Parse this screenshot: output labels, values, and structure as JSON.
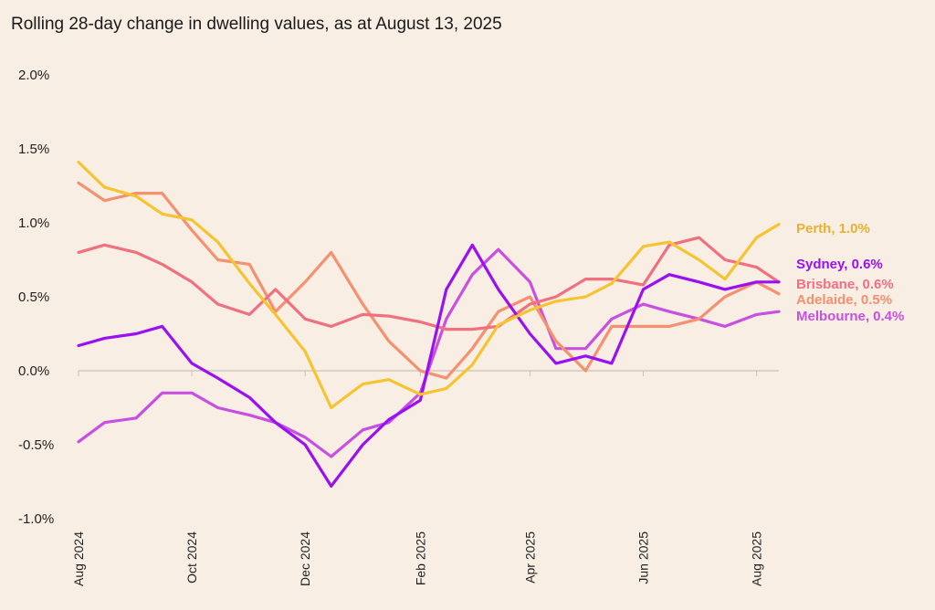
{
  "chart_data": {
    "type": "line",
    "title": "Rolling 28-day change in dwelling values, as at August 13, 2025",
    "xlabel": "",
    "ylabel": "",
    "ylim": [
      -1.0,
      2.0
    ],
    "yticks": [
      "2.0%",
      "1.5%",
      "1.0%",
      "0.5%",
      "0.0%",
      "-0.5%",
      "-1.0%"
    ],
    "ytick_values": [
      2.0,
      1.5,
      1.0,
      0.5,
      0.0,
      -0.5,
      -1.0
    ],
    "xlim": [
      "2024-08-01",
      "2025-08-13"
    ],
    "xticks": [
      {
        "label": "Aug 2024",
        "date": "2024-08-01"
      },
      {
        "label": "Oct 2024",
        "date": "2024-10-01"
      },
      {
        "label": "Dec 2024",
        "date": "2024-12-01"
      },
      {
        "label": "Feb 2025",
        "date": "2025-02-01"
      },
      {
        "label": "Apr 2025",
        "date": "2025-04-01"
      },
      {
        "label": "Jun 2025",
        "date": "2025-06-01"
      },
      {
        "label": "Aug 2025",
        "date": "2025-08-01"
      }
    ],
    "grid": false,
    "legend": "right (end labels)",
    "x": [
      "2024-08-01",
      "2024-08-15",
      "2024-09-01",
      "2024-09-15",
      "2024-10-01",
      "2024-10-15",
      "2024-11-01",
      "2024-11-15",
      "2024-12-01",
      "2024-12-15",
      "2025-01-01",
      "2025-01-15",
      "2025-02-01",
      "2025-02-15",
      "2025-03-01",
      "2025-03-15",
      "2025-04-01",
      "2025-04-15",
      "2025-05-01",
      "2025-05-15",
      "2025-06-01",
      "2025-06-15",
      "2025-07-01",
      "2025-07-15",
      "2025-08-01",
      "2025-08-13"
    ],
    "series": [
      {
        "name": "Perth",
        "label": "Perth, 1.0%",
        "color": "#f5c430",
        "label_color": "#e8b030",
        "values": [
          1.41,
          1.24,
          1.18,
          1.06,
          1.02,
          0.87,
          0.59,
          0.38,
          0.13,
          -0.25,
          -0.09,
          -0.06,
          -0.16,
          -0.12,
          0.04,
          0.31,
          0.41,
          0.47,
          0.5,
          0.59,
          0.84,
          0.87,
          0.75,
          0.62,
          0.9,
          0.99
        ]
      },
      {
        "name": "Sydney",
        "label": "Sydney, 0.6%",
        "color": "#9b10f0",
        "label_color": "#9b10f0",
        "values": [
          0.17,
          0.22,
          0.25,
          0.3,
          0.05,
          -0.05,
          -0.18,
          -0.35,
          -0.5,
          -0.78,
          -0.5,
          -0.33,
          -0.2,
          0.55,
          0.85,
          0.55,
          0.25,
          0.05,
          0.1,
          0.05,
          0.55,
          0.65,
          0.6,
          0.55,
          0.6,
          0.6
        ]
      },
      {
        "name": "Brisbane",
        "label": "Brisbane, 0.6%",
        "color": "#f07080",
        "label_color": "#f07080",
        "values": [
          0.8,
          0.85,
          0.8,
          0.72,
          0.6,
          0.45,
          0.38,
          0.55,
          0.35,
          0.3,
          0.38,
          0.37,
          0.33,
          0.28,
          0.28,
          0.3,
          0.45,
          0.5,
          0.62,
          0.62,
          0.58,
          0.85,
          0.9,
          0.75,
          0.7,
          0.6
        ]
      },
      {
        "name": "Adelaide",
        "label": "Adelaide, 0.5%",
        "color": "#f59070",
        "label_color": "#f59070",
        "values": [
          1.27,
          1.15,
          1.2,
          1.2,
          0.95,
          0.75,
          0.72,
          0.4,
          0.6,
          0.8,
          0.45,
          0.2,
          0.0,
          -0.05,
          0.15,
          0.4,
          0.5,
          0.2,
          0.0,
          0.3,
          0.3,
          0.3,
          0.35,
          0.5,
          0.6,
          0.52
        ]
      },
      {
        "name": "Melbourne",
        "label": "Melbourne, 0.4%",
        "color": "#c850e0",
        "label_color": "#c850e0",
        "values": [
          -0.48,
          -0.35,
          -0.32,
          -0.15,
          -0.15,
          -0.25,
          -0.3,
          -0.35,
          -0.45,
          -0.58,
          -0.4,
          -0.35,
          -0.15,
          0.35,
          0.65,
          0.82,
          0.6,
          0.15,
          0.15,
          0.35,
          0.45,
          0.4,
          0.35,
          0.3,
          0.38,
          0.4
        ]
      }
    ]
  }
}
